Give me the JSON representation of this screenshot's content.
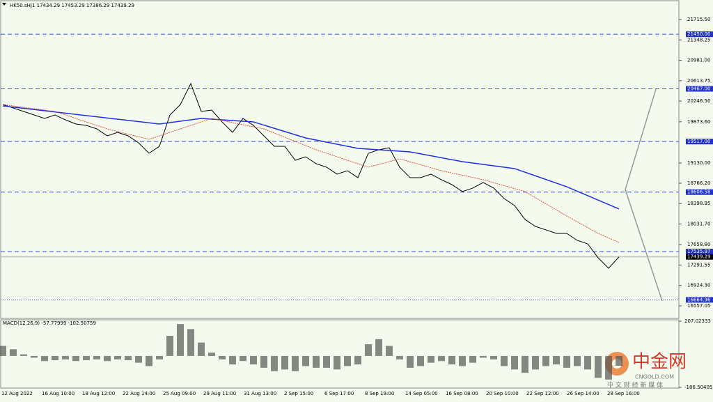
{
  "chart_data": {
    "type": "line",
    "header": "HK50.sHJ1  17434.29 17453.29 17386.29 17439.29",
    "ylim": [
      16331,
      22042
    ],
    "yticks": [
      {
        "value": 21715.5,
        "label": "21715.50"
      },
      {
        "value": 21348.25,
        "label": "21348.25"
      },
      {
        "value": 20981,
        "label": "20981.00"
      },
      {
        "value": 20613.75,
        "label": "20613.75"
      },
      {
        "value": 20246.5,
        "label": "20246.50"
      },
      {
        "value": 19873.6,
        "label": "19873.60"
      },
      {
        "value": 19130,
        "label": "19130.00"
      },
      {
        "value": 18766.2,
        "label": "18766.20"
      },
      {
        "value": 18398.95,
        "label": "18398.95"
      },
      {
        "value": 18031.7,
        "label": "18031.70"
      },
      {
        "value": 17658.8,
        "label": "17658.80"
      },
      {
        "value": 17291.55,
        "label": "17291.55"
      },
      {
        "value": 16924.3,
        "label": "16924.30"
      },
      {
        "value": 16557.05,
        "label": "16557.05"
      }
    ],
    "levels": [
      {
        "value": 21450,
        "label": "21450.00"
      },
      {
        "value": 20467,
        "label": "20467.00"
      },
      {
        "value": 19517,
        "label": "19517.00"
      },
      {
        "value": 18606.58,
        "label": "18606.58"
      },
      {
        "value": 17535.97,
        "label": "17535.97"
      },
      {
        "value": 16664.96,
        "label": "16664.96"
      }
    ],
    "current": {
      "value": 17439.29,
      "label": "17439.29"
    },
    "categories": [
      "12 Aug 2022",
      "16 Aug 10:00",
      "18 Aug 12:00",
      "22 Aug 14:00",
      "25 Aug 09:00",
      "29 Aug 11:00",
      "31 Aug 13:00",
      "2 Sep 15:00",
      "6 Sep 17:00",
      "8 Sep 19:00",
      "14 Sep 05:00",
      "16 Sep 08:00",
      "20 Sep 10:00",
      "22 Sep 12:00",
      "26 Sep 14:00",
      "28 Sep 16:00"
    ],
    "price": {
      "color": "#000000",
      "values": [
        20184,
        20122,
        20059,
        19996,
        19934,
        19996,
        19908,
        19833,
        19808,
        19745,
        19620,
        19682,
        19620,
        19494,
        19306,
        19432,
        19996,
        20184,
        20561,
        20059,
        20084,
        19871,
        19682,
        19934,
        19808,
        19620,
        19432,
        19432,
        19180,
        19243,
        19118,
        19055,
        18930,
        18992,
        18867,
        19306,
        19369,
        19406,
        19055,
        18867,
        18867,
        18930,
        18829,
        18741,
        18616,
        18679,
        18779,
        18679,
        18490,
        18365,
        18114,
        17988,
        17926,
        17863,
        17863,
        17737,
        17674,
        17423,
        17235,
        17439
      ]
    },
    "series": [
      {
        "color": "#1f2fe0",
        "x": [
          0,
          15,
          19,
          24,
          29,
          34,
          39,
          44,
          49,
          54,
          59
        ],
        "values": [
          20159,
          19833,
          19934,
          19871,
          19582,
          19394,
          19331,
          19155,
          19030,
          18703,
          18302
        ]
      },
      {
        "color": "#e03020",
        "x": [
          0,
          5,
          10,
          14,
          17,
          20,
          25,
          30,
          35,
          38,
          42,
          46,
          50,
          54,
          57,
          59
        ],
        "values": [
          20184,
          20059,
          19745,
          19557,
          19745,
          19934,
          19745,
          19369,
          19055,
          19205,
          18992,
          18829,
          18616,
          18176,
          17863,
          17699
        ]
      }
    ],
    "macd": {
      "label": "MACD(12,26,9) -57.77999 -102.50759",
      "ylim": [
        -186.50405,
        207.02333
      ],
      "yticks": [
        {
          "value": 207.02333,
          "label": "207.02333"
        },
        {
          "value": -186.50405,
          "label": "-186.50405"
        }
      ],
      "color": "#555555",
      "values": [
        60,
        40,
        10,
        -10,
        -30,
        -25,
        -20,
        -30,
        -25,
        -20,
        -30,
        -20,
        -25,
        -40,
        -60,
        -20,
        120,
        190,
        160,
        80,
        20,
        -20,
        -50,
        -30,
        -50,
        -70,
        -90,
        -80,
        -90,
        -60,
        -70,
        -70,
        -80,
        -60,
        -50,
        70,
        100,
        60,
        -20,
        -70,
        -60,
        -40,
        -30,
        -50,
        -60,
        -40,
        -10,
        -20,
        -60,
        -80,
        -100,
        -80,
        -60,
        -50,
        -70,
        -60,
        -80,
        -130,
        -140,
        -58
      ]
    }
  },
  "watermark": {
    "name": "中金网",
    "site": "CNGOLD.COM",
    "slogan": "中 文 财 经 新 媒 体"
  }
}
